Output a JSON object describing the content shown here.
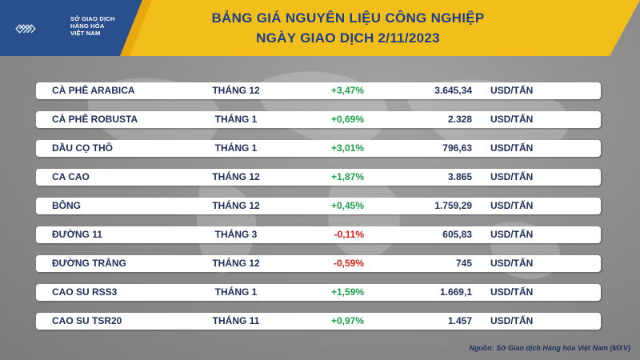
{
  "brand": {
    "line1": "SỞ GIAO DỊCH",
    "line2": "HÀNG HÓA",
    "line3": "VIỆT NAM"
  },
  "title": {
    "line1": "BẢNG GIÁ NGUYÊN LIỆU CÔNG NGHIỆP",
    "line2": "NGÀY GIAO DỊCH 2/11/2023"
  },
  "colors": {
    "banner": "#f2be1a",
    "title": "#1f3f8a",
    "up": "#1aa04a",
    "down": "#e0201a"
  },
  "rows": [
    {
      "name": "CÀ PHÊ ARABICA",
      "month": "THÁNG 12",
      "change": "+3,47%",
      "dir": "up",
      "price": "3.645,34",
      "unit": "USD/TẤN"
    },
    {
      "name": "CÀ PHÊ ROBUSTA",
      "month": "THÁNG 1",
      "change": "+0,69%",
      "dir": "up",
      "price": "2.328",
      "unit": "USD/TẤN"
    },
    {
      "name": "DẦU CỌ THÔ",
      "month": "THÁNG 1",
      "change": "+3,01%",
      "dir": "up",
      "price": "796,63",
      "unit": "USD/TẤN"
    },
    {
      "name": "CA CAO",
      "month": "THÁNG 12",
      "change": "+1,87%",
      "dir": "up",
      "price": "3.865",
      "unit": "USD/TẤN"
    },
    {
      "name": "BÔNG",
      "month": "THÁNG 12",
      "change": "+0,45%",
      "dir": "up",
      "price": "1.759,29",
      "unit": "USD/TẤN"
    },
    {
      "name": "ĐƯỜNG 11",
      "month": "THÁNG 3",
      "change": "-0,11%",
      "dir": "down",
      "price": "605,83",
      "unit": "USD/TẤN"
    },
    {
      "name": "ĐƯỜNG TRẮNG",
      "month": "THÁNG 12",
      "change": "-0,59%",
      "dir": "down",
      "price": "745",
      "unit": "USD/TẤN"
    },
    {
      "name": "CAO SU RSS3",
      "month": "THÁNG 1",
      "change": "+1,59%",
      "dir": "up",
      "price": "1.669,1",
      "unit": "USD/TẤN"
    },
    {
      "name": "CAO SU TSR20",
      "month": "THÁNG 11",
      "change": "+0,97%",
      "dir": "up",
      "price": "1.457",
      "unit": "USD/TẤN"
    }
  ],
  "source": "Nguồn: Sở Giao dịch Hàng hóa Việt Nam (MXV)"
}
